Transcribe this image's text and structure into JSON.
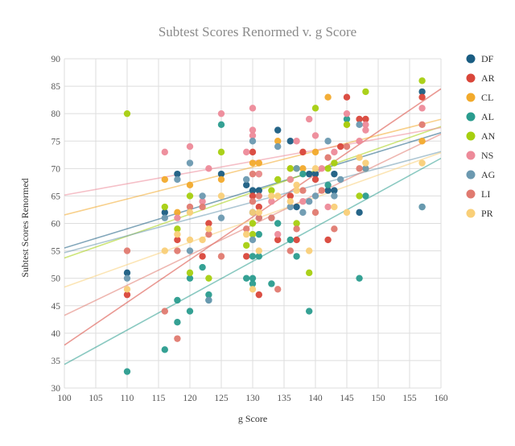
{
  "chart_data": {
    "type": "scatter",
    "title": "Subtest Scores Renormed v. g Score",
    "xlabel": "g Score",
    "ylabel": "Subtest Scores Renormed",
    "xlim": [
      100,
      160
    ],
    "ylim": [
      30,
      90
    ],
    "xticks": [
      "100",
      "105",
      "110",
      "115",
      "120",
      "125",
      "130",
      "135",
      "140",
      "145",
      "150",
      "155",
      "160"
    ],
    "yticks": [
      "30",
      "35",
      "40",
      "45",
      "50",
      "55",
      "60",
      "65",
      "70",
      "75",
      "80",
      "85",
      "90"
    ],
    "grid": true,
    "legend_position": "right",
    "trendlines": "linear per series",
    "series": [
      {
        "name": "DF",
        "color": "#1a5d82",
        "points": [
          [
            110,
            51
          ],
          [
            116,
            62
          ],
          [
            118,
            69
          ],
          [
            125,
            69
          ],
          [
            129,
            67
          ],
          [
            130,
            66
          ],
          [
            130,
            62
          ],
          [
            131,
            66
          ],
          [
            134,
            77
          ],
          [
            136,
            75
          ],
          [
            137,
            63
          ],
          [
            139,
            69
          ],
          [
            140,
            69
          ],
          [
            142,
            66
          ],
          [
            143,
            69
          ],
          [
            143,
            66
          ],
          [
            147,
            62
          ],
          [
            157,
            84
          ]
        ]
      },
      {
        "name": "AR",
        "color": "#d9463a",
        "points": [
          [
            110,
            47
          ],
          [
            118,
            57
          ],
          [
            122,
            54
          ],
          [
            123,
            60
          ],
          [
            129,
            54
          ],
          [
            130,
            73
          ],
          [
            130,
            65
          ],
          [
            131,
            63
          ],
          [
            131,
            47
          ],
          [
            134,
            57
          ],
          [
            136,
            65
          ],
          [
            137,
            57
          ],
          [
            138,
            73
          ],
          [
            140,
            68
          ],
          [
            142,
            57
          ],
          [
            144,
            74
          ],
          [
            145,
            83
          ],
          [
            147,
            79
          ],
          [
            148,
            79
          ],
          [
            157,
            83
          ]
        ]
      },
      {
        "name": "CL",
        "color": "#f2aa2c",
        "points": [
          [
            116,
            68
          ],
          [
            118,
            62
          ],
          [
            120,
            67
          ],
          [
            125,
            68
          ],
          [
            130,
            71
          ],
          [
            131,
            71
          ],
          [
            134,
            75
          ],
          [
            136,
            70
          ],
          [
            138,
            70
          ],
          [
            140,
            73
          ],
          [
            142,
            83
          ],
          [
            145,
            78
          ],
          [
            148,
            70
          ],
          [
            157,
            75
          ]
        ]
      },
      {
        "name": "AL",
        "color": "#2a9c8e",
        "points": [
          [
            110,
            33
          ],
          [
            116,
            37
          ],
          [
            118,
            46
          ],
          [
            118,
            42
          ],
          [
            120,
            50
          ],
          [
            120,
            44
          ],
          [
            122,
            52
          ],
          [
            123,
            47
          ],
          [
            123,
            46
          ],
          [
            125,
            78
          ],
          [
            129,
            50
          ],
          [
            130,
            54
          ],
          [
            130,
            50
          ],
          [
            130,
            49
          ],
          [
            131,
            54
          ],
          [
            131,
            58
          ],
          [
            133,
            49
          ],
          [
            134,
            60
          ],
          [
            136,
            57
          ],
          [
            137,
            54
          ],
          [
            138,
            69
          ],
          [
            139,
            44
          ],
          [
            142,
            67
          ],
          [
            145,
            79
          ],
          [
            147,
            50
          ],
          [
            148,
            65
          ],
          [
            157,
            63
          ]
        ]
      },
      {
        "name": "AN",
        "color": "#a6cf0f",
        "points": [
          [
            110,
            80
          ],
          [
            116,
            63
          ],
          [
            118,
            59
          ],
          [
            120,
            65
          ],
          [
            120,
            51
          ],
          [
            123,
            50
          ],
          [
            125,
            73
          ],
          [
            129,
            56
          ],
          [
            130,
            60
          ],
          [
            130,
            58
          ],
          [
            131,
            69
          ],
          [
            133,
            66
          ],
          [
            134,
            68
          ],
          [
            136,
            70
          ],
          [
            136,
            68
          ],
          [
            137,
            70
          ],
          [
            137,
            60
          ],
          [
            139,
            51
          ],
          [
            140,
            81
          ],
          [
            142,
            70
          ],
          [
            143,
            71
          ],
          [
            145,
            78
          ],
          [
            147,
            65
          ],
          [
            148,
            84
          ],
          [
            157,
            86
          ]
        ]
      },
      {
        "name": "NS",
        "color": "#ed8a99",
        "points": [
          [
            116,
            73
          ],
          [
            118,
            61
          ],
          [
            120,
            74
          ],
          [
            122,
            64
          ],
          [
            123,
            70
          ],
          [
            125,
            80
          ],
          [
            129,
            73
          ],
          [
            130,
            81
          ],
          [
            130,
            77
          ],
          [
            130,
            76
          ],
          [
            131,
            69
          ],
          [
            133,
            64
          ],
          [
            134,
            58
          ],
          [
            136,
            68
          ],
          [
            137,
            75
          ],
          [
            138,
            64
          ],
          [
            139,
            79
          ],
          [
            140,
            76
          ],
          [
            141,
            70
          ],
          [
            142,
            63
          ],
          [
            143,
            73
          ],
          [
            145,
            80
          ],
          [
            147,
            75
          ],
          [
            148,
            78
          ],
          [
            148,
            77
          ],
          [
            157,
            81
          ]
        ]
      },
      {
        "name": "AG",
        "color": "#6c99b0",
        "points": [
          [
            110,
            50
          ],
          [
            116,
            61
          ],
          [
            118,
            68
          ],
          [
            120,
            71
          ],
          [
            120,
            55
          ],
          [
            122,
            65
          ],
          [
            123,
            46
          ],
          [
            125,
            61
          ],
          [
            129,
            68
          ],
          [
            130,
            75
          ],
          [
            130,
            57
          ],
          [
            131,
            61
          ],
          [
            133,
            61
          ],
          [
            134,
            74
          ],
          [
            136,
            63
          ],
          [
            137,
            70
          ],
          [
            138,
            62
          ],
          [
            139,
            64
          ],
          [
            140,
            65
          ],
          [
            142,
            75
          ],
          [
            143,
            65
          ],
          [
            144,
            68
          ],
          [
            147,
            78
          ],
          [
            148,
            70
          ],
          [
            157,
            63
          ]
        ]
      },
      {
        "name": "LI",
        "color": "#e07a70",
        "points": [
          [
            110,
            55
          ],
          [
            116,
            44
          ],
          [
            118,
            39
          ],
          [
            118,
            55
          ],
          [
            120,
            63
          ],
          [
            122,
            63
          ],
          [
            123,
            58
          ],
          [
            125,
            54
          ],
          [
            129,
            59
          ],
          [
            130,
            69
          ],
          [
            130,
            64
          ],
          [
            131,
            65
          ],
          [
            131,
            61
          ],
          [
            133,
            61
          ],
          [
            134,
            48
          ],
          [
            136,
            55
          ],
          [
            137,
            59
          ],
          [
            138,
            66
          ],
          [
            140,
            62
          ],
          [
            141,
            66
          ],
          [
            142,
            72
          ],
          [
            143,
            59
          ],
          [
            145,
            74
          ],
          [
            147,
            70
          ],
          [
            157,
            78
          ]
        ]
      },
      {
        "name": "PR",
        "color": "#f9cf78",
        "points": [
          [
            110,
            48
          ],
          [
            116,
            55
          ],
          [
            118,
            58
          ],
          [
            120,
            57
          ],
          [
            120,
            62
          ],
          [
            122,
            57
          ],
          [
            123,
            59
          ],
          [
            125,
            65
          ],
          [
            129,
            58
          ],
          [
            130,
            62
          ],
          [
            130,
            48
          ],
          [
            131,
            62
          ],
          [
            131,
            55
          ],
          [
            133,
            65
          ],
          [
            134,
            65
          ],
          [
            136,
            64
          ],
          [
            137,
            67
          ],
          [
            137,
            66
          ],
          [
            139,
            55
          ],
          [
            140,
            70
          ],
          [
            143,
            63
          ],
          [
            145,
            62
          ],
          [
            147,
            72
          ],
          [
            148,
            71
          ],
          [
            157,
            71
          ]
        ]
      }
    ]
  }
}
